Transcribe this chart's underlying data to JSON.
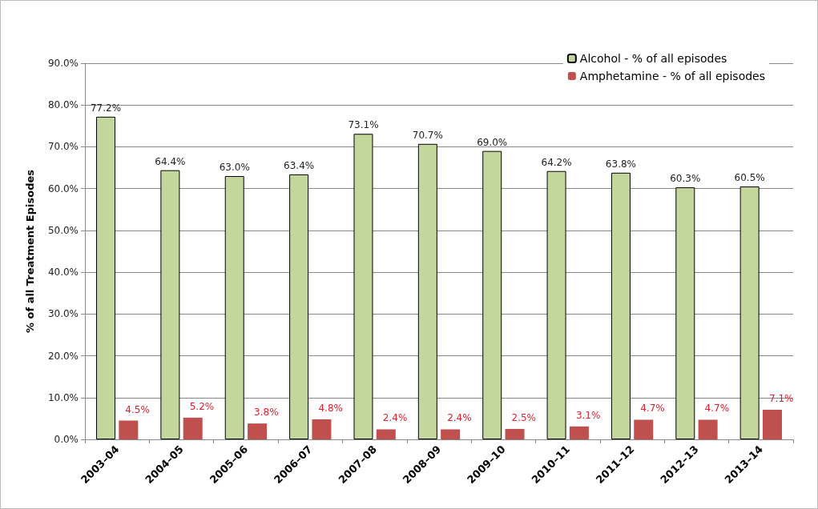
{
  "chart_data": {
    "type": "bar",
    "ylabel": "% of all Treatment Episodes",
    "categories": [
      "2003–04",
      "2004–05",
      "2005–06",
      "2006–07",
      "2007–08",
      "2008–09",
      "2009–10",
      "2010–11",
      "2011–12",
      "2012–13",
      "2013–14"
    ],
    "series": [
      {
        "name": "Alcohol - % of all episodes",
        "color": "#c3d69b",
        "values": [
          77.2,
          64.4,
          63.0,
          63.4,
          73.1,
          70.7,
          69.0,
          64.2,
          63.8,
          60.3,
          60.5
        ],
        "value_labels": [
          "77.2%",
          "64.4%",
          "63.0%",
          "63.4%",
          "73.1%",
          "70.7%",
          "69.0%",
          "64.2%",
          "63.8%",
          "60.3%",
          "60.5%"
        ]
      },
      {
        "name": "Amphetamine - % of all episodes",
        "color": "#c0504d",
        "values": [
          4.5,
          5.2,
          3.8,
          4.8,
          2.4,
          2.4,
          2.5,
          3.1,
          4.7,
          4.7,
          7.1
        ],
        "value_labels": [
          "4.5%",
          "5.2%",
          "3.8%",
          "4.8%",
          "2.4%",
          "2.4%",
          "2.5%",
          "3.1%",
          "4.7%",
          "4.7%",
          "7.1%"
        ]
      }
    ],
    "ylim": [
      0,
      90
    ],
    "yticks": [
      {
        "value": 0,
        "label": "0.0%"
      },
      {
        "value": 10,
        "label": "10.0%"
      },
      {
        "value": 20,
        "label": "20.0%"
      },
      {
        "value": 30,
        "label": "30.0%"
      },
      {
        "value": 40,
        "label": "40.0%"
      },
      {
        "value": 50,
        "label": "50.0%"
      },
      {
        "value": 60,
        "label": "60.0%"
      },
      {
        "value": 70,
        "label": "70.0%"
      },
      {
        "value": 80,
        "label": "80.0%"
      },
      {
        "value": 90,
        "label": "90.0%"
      }
    ],
    "grid": "y",
    "legend": "top right"
  }
}
